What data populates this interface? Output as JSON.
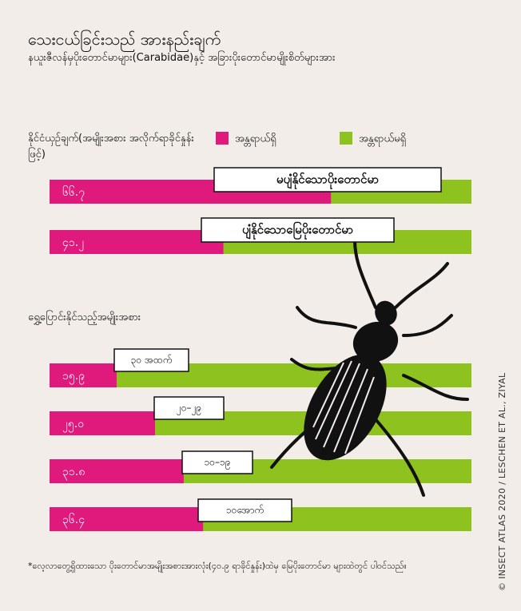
{
  "header": {
    "title": "သေးငယ်ခြင်းသည် အားနည်းချက်",
    "subtitle": "နယူးဇီလန်မှပိုးတောင်မာများ(Carabidae)နှင့် အခြားပိုးတောင်မာမျိုးစိတ်များအား"
  },
  "legend": [
    {
      "name": "အန္တရာယ်ရှိ",
      "color": "#e0197d"
    },
    {
      "name": "အန္တရာယ်မရှိ",
      "color": "#8dc21f"
    }
  ],
  "chart_data": [
    {
      "type": "bar",
      "title": "နိုင်ငံယှဉ်ချက်(အမျိုးအစား အလိုက်ရာခိုင်နှုန်းဖြင့်)",
      "categories": [
        "မပျံနိုင်သောပိုးတောင်မာ",
        "ပျံနိုင်သောမြေပိုးတောင်မာ"
      ],
      "values": [
        66.7,
        41.2
      ],
      "value_labels": [
        "၆၆.၇",
        "၄၁.၂"
      ],
      "color": "#e0197d",
      "track_color": "#8dc21f",
      "xlim": [
        0,
        100
      ]
    },
    {
      "type": "bar",
      "title": "ရွှေ့ပြောင်းနိုင်သည့်အမျိုးအစား",
      "categories": [
        "၃၀ အထက်",
        "၂၀–၂၉",
        "၁၀–၁၉",
        "၁၀အောက်"
      ],
      "values": [
        15.9,
        25.0,
        31.8,
        36.4
      ],
      "value_labels": [
        "၁၅.၉",
        "၂၅.၀",
        "၃၁.၈",
        "၃၆.၄"
      ],
      "color": "#e0197d",
      "track_color": "#8dc21f",
      "xlim": [
        0,
        100
      ]
    }
  ],
  "footnote": "*လေ့လာတွေ့ရှိထားသော ပိုးတောင်မာအမျိုးအစားအားလုံး(၄၀.၉ ရာခိုင်နှုန်း)ထဲမှ မြေပိုးတောင်မာ များထဲတွင် ပါဝင်သည်။",
  "credit": "© INSECT ATLAS 2020 / LESCHEN ET AL., ZIYAL"
}
